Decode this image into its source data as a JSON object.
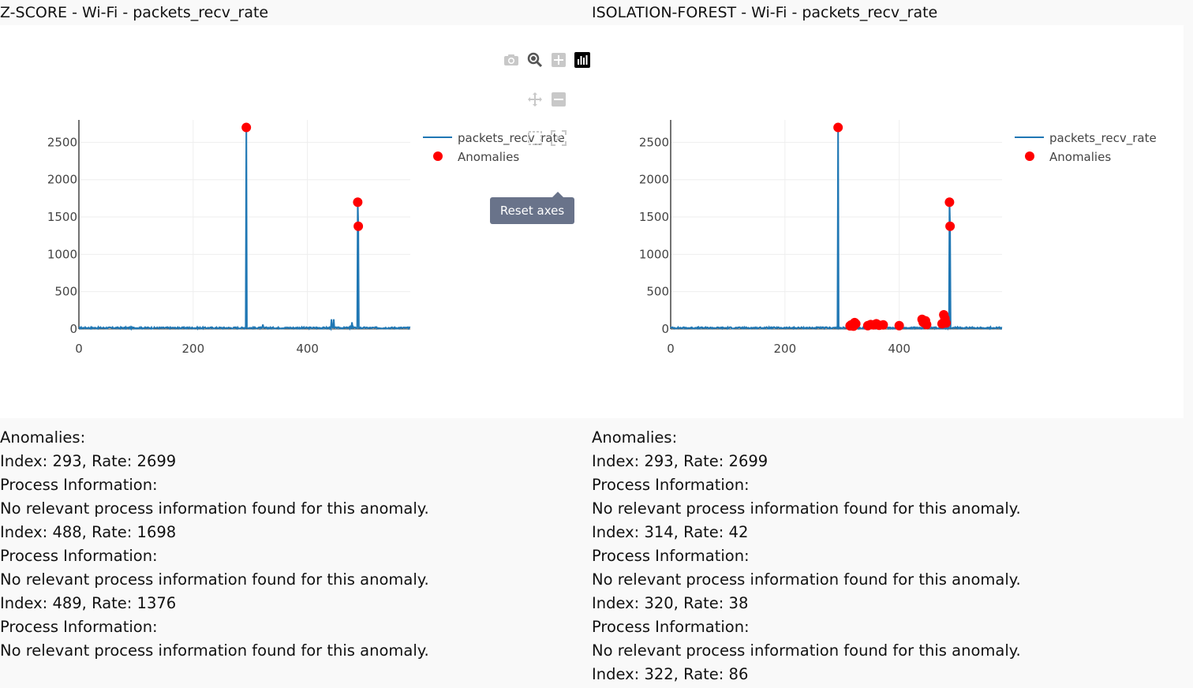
{
  "panels": [
    {
      "title": "Z-SCORE - Wi-Fi - packets_recv_rate",
      "legend": {
        "line_label": "packets_recv_rate",
        "marker_label": "Anomalies"
      },
      "text_lines": [
        "Anomalies:",
        "Index: 293, Rate: 2699",
        "Process Information:",
        "No relevant process information found for this anomaly.",
        "Index: 488, Rate: 1698",
        "Process Information:",
        "No relevant process information found for this anomaly.",
        "Index: 489, Rate: 1376",
        "Process Information:",
        "No relevant process information found for this anomaly."
      ]
    },
    {
      "title": "ISOLATION-FOREST - Wi-Fi - packets_recv_rate",
      "legend": {
        "line_label": "packets_recv_rate",
        "marker_label": "Anomalies"
      },
      "text_lines": [
        "Anomalies:",
        "Index: 293, Rate: 2699",
        "Process Information:",
        "No relevant process information found for this anomaly.",
        "Index: 314, Rate: 42",
        "Process Information:",
        "No relevant process information found for this anomaly.",
        "Index: 320, Rate: 38",
        "Process Information:",
        "No relevant process information found for this anomaly.",
        "Index: 322, Rate: 86"
      ]
    }
  ],
  "modebar": {
    "buttons": [
      "camera-icon",
      "zoom-icon",
      "zoom-in-icon",
      "autoscale-icon",
      "pan-icon",
      "zoom-out-icon",
      "reset-axes-icon"
    ],
    "active": "autoscale-icon"
  },
  "tooltip": {
    "text": "Reset axes"
  },
  "colors": {
    "line": "#1f77b4",
    "anomaly": "#ff0000",
    "tooltip": "#69738a"
  },
  "chart_data": [
    {
      "type": "line",
      "title": "Z-SCORE - Wi-Fi - packets_recv_rate",
      "xlim": [
        0,
        580
      ],
      "ylim": [
        0,
        2800
      ],
      "xticks": [
        0,
        200,
        400
      ],
      "yticks": [
        0,
        500,
        1000,
        1500,
        2000,
        2500
      ],
      "grid": true,
      "legend_position": "top-right",
      "series": [
        {
          "name": "packets_recv_rate",
          "mode": "line",
          "baseline": 15,
          "noise": 10,
          "peaks": [
            [
              292,
              15
            ],
            [
              293,
              2699
            ],
            [
              294,
              15
            ],
            [
              320,
              15
            ],
            [
              322,
              60
            ],
            [
              324,
              15
            ],
            [
              440,
              20
            ],
            [
              442,
              130
            ],
            [
              446,
              130
            ],
            [
              448,
              20
            ],
            [
              475,
              30
            ],
            [
              478,
              90
            ],
            [
              480,
              30
            ],
            [
              487,
              15
            ],
            [
              488,
              1698
            ],
            [
              489,
              1376
            ],
            [
              490,
              15
            ]
          ]
        },
        {
          "name": "Anomalies",
          "mode": "markers",
          "points": [
            [
              293,
              2699
            ],
            [
              488,
              1698
            ],
            [
              489,
              1376
            ]
          ]
        }
      ]
    },
    {
      "type": "line",
      "title": "ISOLATION-FOREST - Wi-Fi - packets_recv_rate",
      "xlim": [
        0,
        580
      ],
      "ylim": [
        0,
        2800
      ],
      "xticks": [
        0,
        200,
        400
      ],
      "yticks": [
        0,
        500,
        1000,
        1500,
        2000,
        2500
      ],
      "grid": true,
      "legend_position": "top-right",
      "series": [
        {
          "name": "packets_recv_rate",
          "mode": "line",
          "baseline": 15,
          "noise": 10,
          "peaks": [
            [
              292,
              15
            ],
            [
              293,
              2699
            ],
            [
              294,
              15
            ],
            [
              487,
              15
            ],
            [
              488,
              1698
            ],
            [
              489,
              1376
            ],
            [
              490,
              15
            ]
          ]
        },
        {
          "name": "Anomalies",
          "mode": "markers",
          "points": [
            [
              293,
              2699
            ],
            [
              314,
              42
            ],
            [
              316,
              55
            ],
            [
              320,
              38
            ],
            [
              322,
              86
            ],
            [
              324,
              70
            ],
            [
              345,
              45
            ],
            [
              350,
              60
            ],
            [
              355,
              55
            ],
            [
              360,
              70
            ],
            [
              365,
              50
            ],
            [
              372,
              55
            ],
            [
              400,
              45
            ],
            [
              440,
              130
            ],
            [
              442,
              90
            ],
            [
              446,
              110
            ],
            [
              448,
              60
            ],
            [
              475,
              70
            ],
            [
              478,
              190
            ],
            [
              480,
              140
            ],
            [
              482,
              80
            ],
            [
              488,
              1698
            ],
            [
              489,
              1376
            ]
          ]
        }
      ]
    }
  ]
}
